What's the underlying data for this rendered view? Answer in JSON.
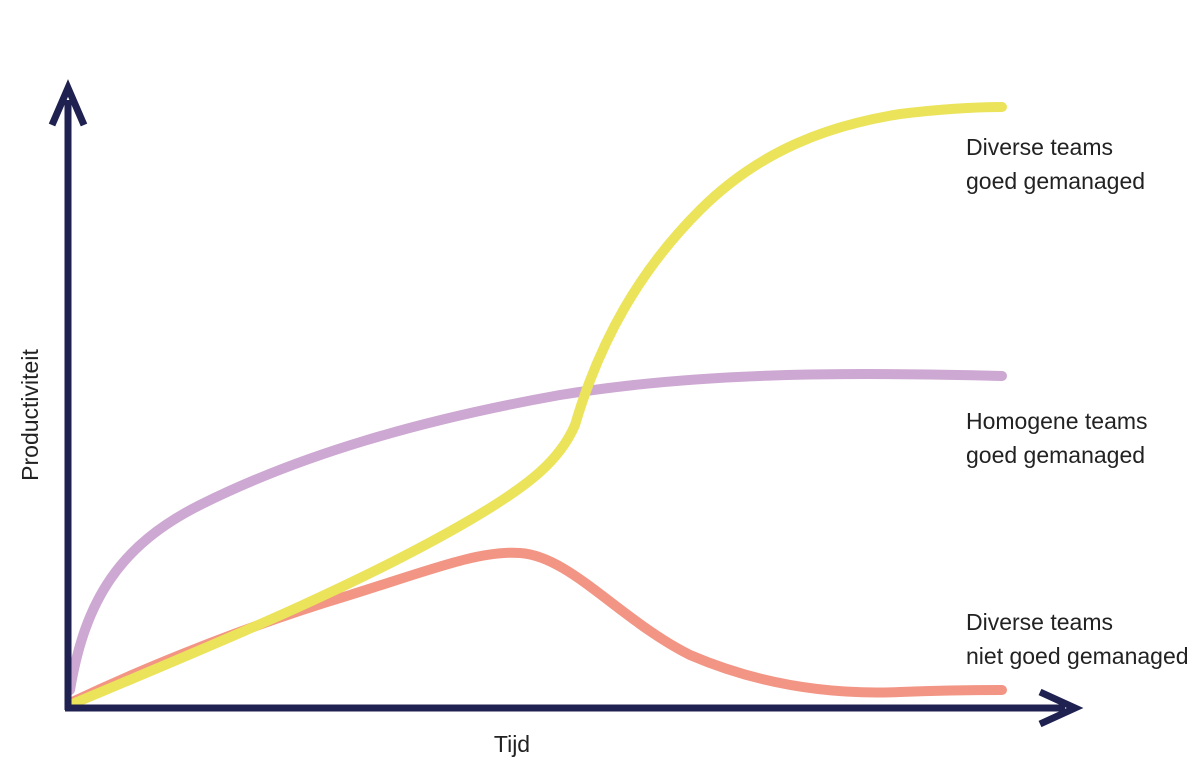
{
  "axes": {
    "y_label": "Productiviteit",
    "x_label": "Tijd"
  },
  "curves": [
    {
      "label": [
        "Diverse teams",
        "goed gemanaged"
      ]
    },
    {
      "label": [
        "Homogene teams",
        "goed gemanaged"
      ]
    },
    {
      "label": [
        "Diverse teams",
        "niet goed gemanaged"
      ]
    }
  ]
}
